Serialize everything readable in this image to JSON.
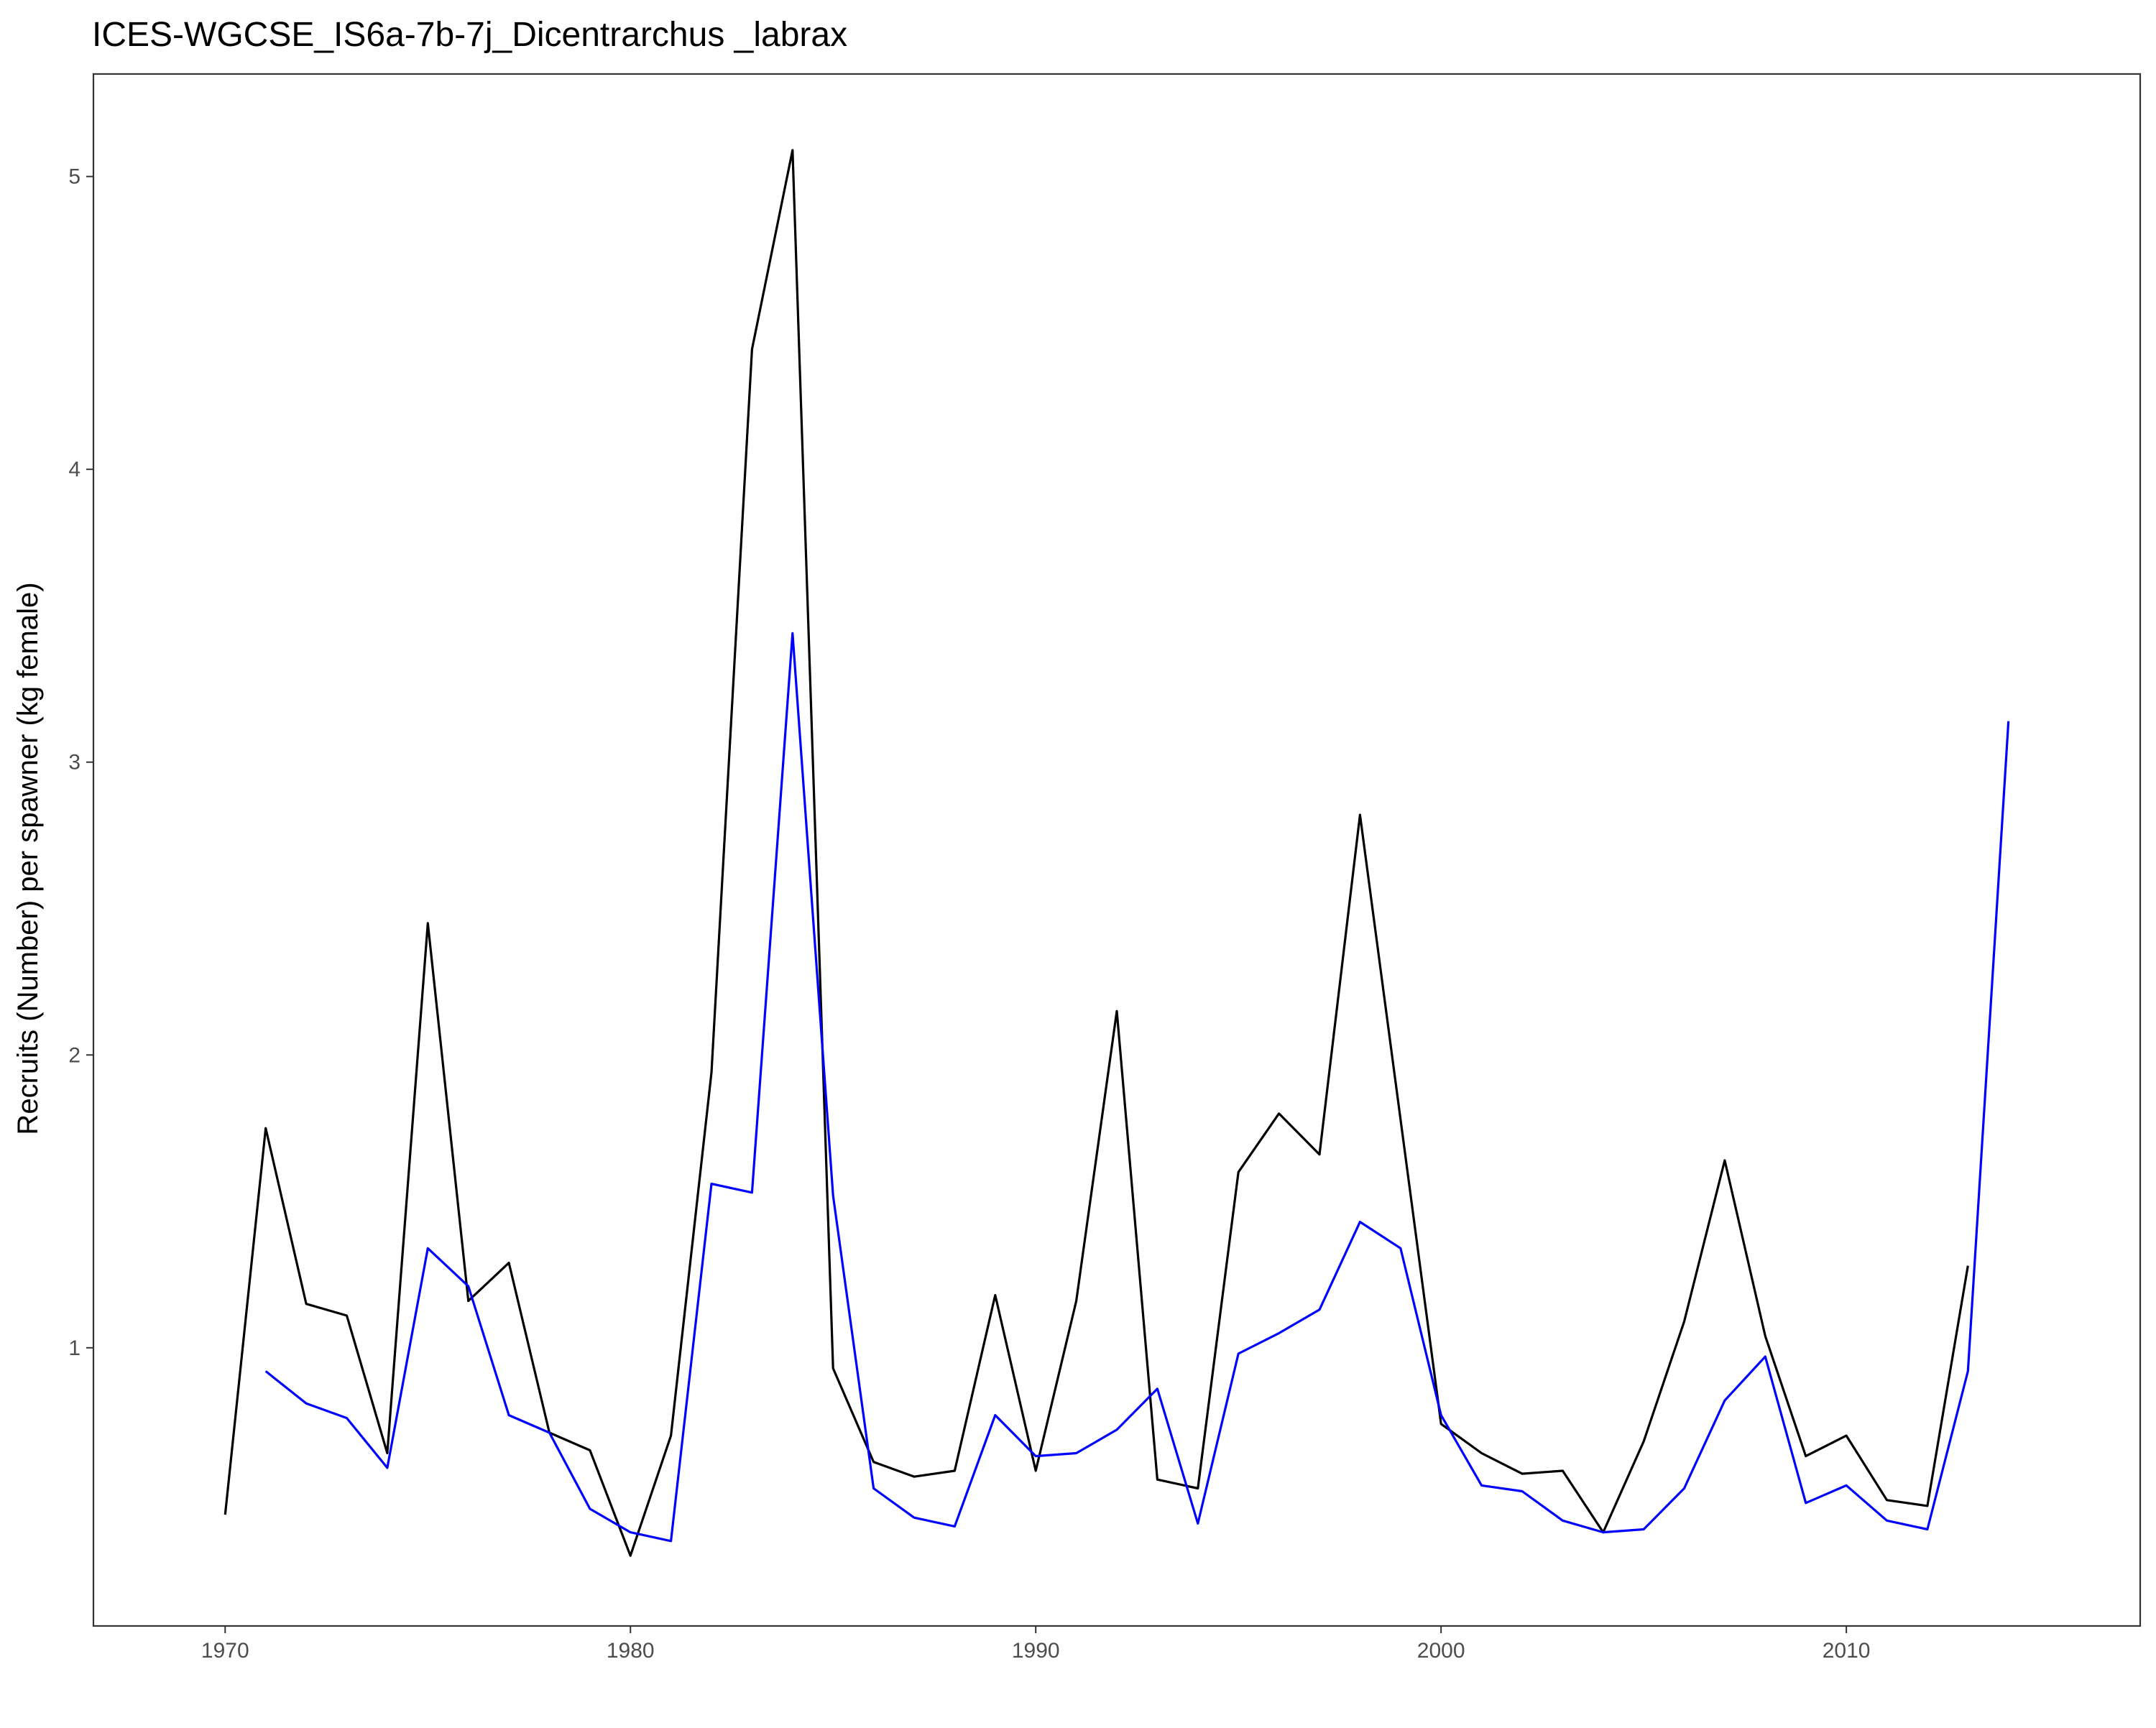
{
  "chart_data": {
    "type": "line",
    "title": "ICES-WGCSE_IS6a-7b-7j_Dicentrarchus _labrax",
    "xlabel": "",
    "ylabel": "Recruits (Number) per spawner (kg female)",
    "xlim": [
      1966.75,
      2017.25
    ],
    "ylim": [
      0.05,
      5.35
    ],
    "x_ticks": [
      1970,
      1980,
      1990,
      2000,
      2010
    ],
    "y_ticks": [
      1,
      2,
      3,
      4,
      5
    ],
    "grid": false,
    "legend": "none",
    "series": [
      {
        "color": "#000000",
        "points": [
          [
            1970,
            0.43
          ],
          [
            1971,
            1.75
          ],
          [
            1972,
            1.15
          ],
          [
            1973,
            1.11
          ],
          [
            1974,
            0.64
          ],
          [
            1975,
            2.45
          ],
          [
            1976,
            1.16
          ],
          [
            1977,
            1.29
          ],
          [
            1978,
            0.71
          ],
          [
            1979,
            0.65
          ],
          [
            1980,
            0.29
          ],
          [
            1981,
            0.7
          ],
          [
            1982,
            1.94
          ],
          [
            1983,
            4.41
          ],
          [
            1984,
            5.09
          ],
          [
            1985,
            0.93
          ],
          [
            1986,
            0.61
          ],
          [
            1987,
            0.56
          ],
          [
            1988,
            0.58
          ],
          [
            1989,
            1.18
          ],
          [
            1990,
            0.58
          ],
          [
            1991,
            1.16
          ],
          [
            1992,
            2.15
          ],
          [
            1993,
            0.55
          ],
          [
            1994,
            0.52
          ],
          [
            1995,
            1.6
          ],
          [
            1996,
            1.8
          ],
          [
            1997,
            1.66
          ],
          [
            1998,
            2.82
          ],
          [
            1999,
            1.78
          ],
          [
            2000,
            0.74
          ],
          [
            2001,
            0.64
          ],
          [
            2002,
            0.57
          ],
          [
            2003,
            0.58
          ],
          [
            2004,
            0.37
          ],
          [
            2005,
            0.68
          ],
          [
            2006,
            1.09
          ],
          [
            2007,
            1.64
          ],
          [
            2008,
            1.04
          ],
          [
            2009,
            0.63
          ],
          [
            2010,
            0.7
          ],
          [
            2011,
            0.48
          ],
          [
            2012,
            0.46
          ],
          [
            2013,
            1.28
          ]
        ]
      },
      {
        "color": "#0000ff",
        "points": [
          [
            1971,
            0.92
          ],
          [
            1972,
            0.81
          ],
          [
            1973,
            0.76
          ],
          [
            1974,
            0.59
          ],
          [
            1975,
            1.34
          ],
          [
            1976,
            1.21
          ],
          [
            1977,
            0.77
          ],
          [
            1978,
            0.71
          ],
          [
            1979,
            0.45
          ],
          [
            1980,
            0.37
          ],
          [
            1981,
            0.34
          ],
          [
            1982,
            1.56
          ],
          [
            1983,
            1.53
          ],
          [
            1984,
            3.44
          ],
          [
            1985,
            1.52
          ],
          [
            1986,
            0.52
          ],
          [
            1987,
            0.42
          ],
          [
            1988,
            0.39
          ],
          [
            1989,
            0.77
          ],
          [
            1990,
            0.63
          ],
          [
            1991,
            0.64
          ],
          [
            1992,
            0.72
          ],
          [
            1993,
            0.86
          ],
          [
            1994,
            0.4
          ],
          [
            1995,
            0.98
          ],
          [
            1996,
            1.05
          ],
          [
            1997,
            1.13
          ],
          [
            1998,
            1.43
          ],
          [
            1999,
            1.34
          ],
          [
            2000,
            0.77
          ],
          [
            2001,
            0.53
          ],
          [
            2002,
            0.51
          ],
          [
            2003,
            0.41
          ],
          [
            2004,
            0.37
          ],
          [
            2005,
            0.38
          ],
          [
            2006,
            0.52
          ],
          [
            2007,
            0.82
          ],
          [
            2008,
            0.97
          ],
          [
            2009,
            0.47
          ],
          [
            2010,
            0.53
          ],
          [
            2011,
            0.41
          ],
          [
            2012,
            0.38
          ],
          [
            2013,
            0.92
          ],
          [
            2014,
            3.14
          ]
        ]
      }
    ]
  }
}
